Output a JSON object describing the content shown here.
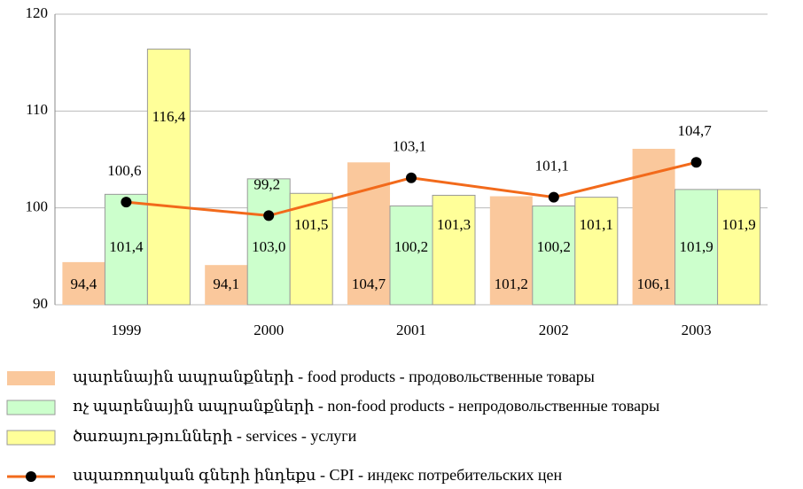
{
  "chart_data": {
    "type": "bar_line",
    "categories": [
      "1999",
      "2000",
      "2001",
      "2002",
      "2003"
    ],
    "ylim": [
      90,
      120
    ],
    "yticks": [
      90,
      100,
      110,
      120
    ],
    "grid": true,
    "series": [
      {
        "name": "պարենային ապրանքների - food products - продовольственные товары",
        "type": "bar",
        "color": "#fac89c",
        "values": [
          94.4,
          94.1,
          104.7,
          101.2,
          106.1
        ],
        "value_labels": [
          "94,4",
          "94,1",
          "104,7",
          "101,2",
          "106,1"
        ]
      },
      {
        "name": "ոչ պարենային ապրանքների - non-food products - непродовольственные товары",
        "type": "bar",
        "color": "#ccffcc",
        "values": [
          101.4,
          103.0,
          100.2,
          100.2,
          101.9
        ],
        "value_labels": [
          "101,4",
          "103,0",
          "100,2",
          "100,2",
          "101,9"
        ]
      },
      {
        "name": "ծառայությունների - services - услуги",
        "type": "bar",
        "color": "#ffff99",
        "values": [
          116.4,
          101.5,
          101.3,
          101.1,
          101.9
        ],
        "value_labels": [
          "116,4",
          "101,5",
          "101,3",
          "101,1",
          "101,9"
        ]
      },
      {
        "name": "սպառողական գների ինդեքս - CPI - индекс потребительских цен",
        "type": "line",
        "color": "#f26a1b",
        "values": [
          100.6,
          99.2,
          103.1,
          101.1,
          104.7
        ],
        "value_labels": [
          "100,6",
          "99,2",
          "103,1",
          "101,1",
          "104,7"
        ]
      }
    ]
  }
}
